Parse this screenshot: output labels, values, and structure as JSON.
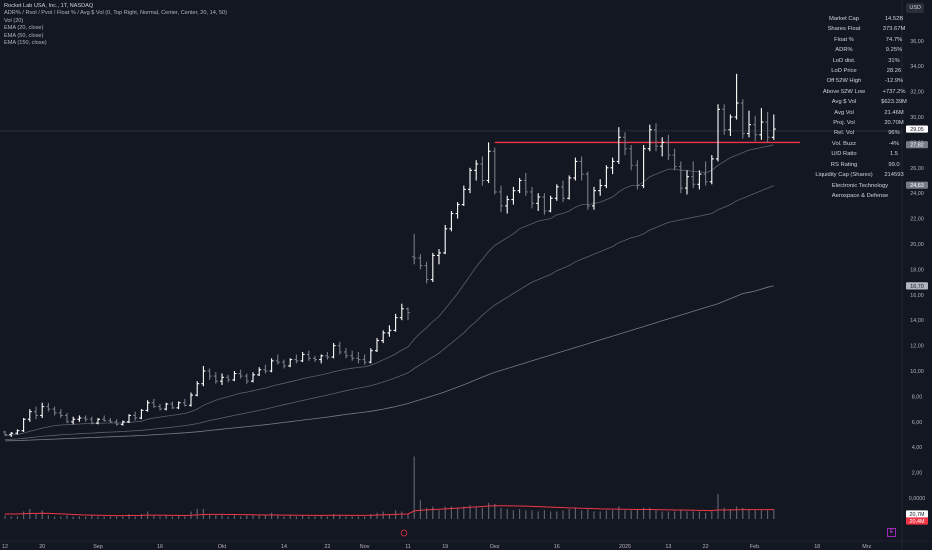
{
  "header": {
    "title": "Rocket Lab USA, Inc., 1T, NASDAQ",
    "indicators": [
      "ADR% / Rvol / Pvol / Float % / Avg $ Vol (0, Top Right, Normal, Center, Center, 20, 14, 50)",
      "Vol (20)",
      "EMA (20, close)",
      "EMA (50, close)",
      "EMA (150, close)"
    ],
    "currency": "USD"
  },
  "stats_table": [
    {
      "label": "Market Cap",
      "value": "14.52B"
    },
    {
      "label": "Shares Float",
      "value": "373.67M"
    },
    {
      "label": "Float %",
      "value": "74.7%"
    },
    {
      "label": "ADR%",
      "value": "9.25%"
    },
    {
      "label": "LoD dist.",
      "value": "31%"
    },
    {
      "label": "LoD Price",
      "value": "28.26"
    },
    {
      "label": "Off 52W High",
      "value": "-12.9%"
    },
    {
      "label": "Above 52W Low",
      "value": "+737.2%"
    },
    {
      "label": "Avg $ Vol",
      "value": "$623.39M"
    },
    {
      "label": "Avg Vol",
      "value": "21.46M"
    },
    {
      "label": "Proj. Vol",
      "value": "20.70M"
    },
    {
      "label": "Rel. Vol",
      "value": "96%"
    },
    {
      "label": "Vol. Buzz",
      "value": "-4%"
    },
    {
      "label": "U/D Ratio",
      "value": "1.5"
    },
    {
      "label": "RS Rating",
      "value": "99.0"
    },
    {
      "label": "Liquidity Cap (Shares)",
      "value": "214593"
    },
    {
      "label": "Electronic Technology",
      "value": ""
    },
    {
      "label": "Aerospace & Defense",
      "value": ""
    }
  ],
  "price_axis": {
    "ticks": [
      "36,00",
      "34,00",
      "32,00",
      "30,00",
      "28,00",
      "26,00",
      "24,00",
      "22,00",
      "20,00",
      "18,00",
      "16,00",
      "14,00",
      "12,00",
      "10,00",
      "8,00",
      "6,00",
      "4,00",
      "2,00",
      "0,0000"
    ],
    "labels": [
      {
        "text": "29,05",
        "value": 29.05,
        "bg": "#ffffff",
        "fg": "#131722"
      },
      {
        "text": "27,82",
        "value": 27.82,
        "bg": "#787b86",
        "fg": "#ffffff"
      },
      {
        "text": "24,63",
        "value": 24.63,
        "bg": "#787b86",
        "fg": "#ffffff"
      },
      {
        "text": "16,70",
        "value": 16.7,
        "bg": "#b2b5be",
        "fg": "#131722"
      },
      {
        "text": "20,7M",
        "value": -0.9,
        "bg": "#ffffff",
        "fg": "#131722"
      },
      {
        "text": "20,4M",
        "value": -2.3,
        "bg": "#f23645",
        "fg": "#ffffff"
      }
    ]
  },
  "time_axis": [
    {
      "label": "12",
      "at": 0
    },
    {
      "label": "20",
      "at": 6
    },
    {
      "label": "Sep",
      "at": 15
    },
    {
      "label": "16",
      "at": 25
    },
    {
      "label": "Okt",
      "at": 35
    },
    {
      "label": "14",
      "at": 45
    },
    {
      "label": "22",
      "at": 52
    },
    {
      "label": "Nov",
      "at": 58
    },
    {
      "label": "11",
      "at": 65
    },
    {
      "label": "19",
      "at": 71
    },
    {
      "label": "Dez",
      "at": 79
    },
    {
      "label": "16",
      "at": 89
    },
    {
      "label": "2025",
      "at": 100
    },
    {
      "label": "13",
      "at": 107
    },
    {
      "label": "22",
      "at": 113
    },
    {
      "label": "Feb.",
      "at": 121
    },
    {
      "label": "18",
      "at": 131
    },
    {
      "label": "Mrz",
      "at": 139
    }
  ],
  "chart_data": {
    "type": "ohlc",
    "title": "Rocket Lab USA, Inc., 1T, NASDAQ",
    "ylim": [
      0,
      37
    ],
    "horizontal_line": {
      "value": 28.0,
      "color": "#f23645"
    },
    "colors": {
      "up": "#ffffff",
      "down": "#787b86",
      "ema20": "#5d606b",
      "ema50": "#5d606b",
      "ema150": "#787b86",
      "vol_ma": "#f23645"
    },
    "ohlc": [
      [
        5.2,
        5.3,
        4.9,
        5.0
      ],
      [
        5.0,
        5.2,
        4.8,
        5.1
      ],
      [
        5.1,
        5.4,
        5.0,
        5.3
      ],
      [
        5.3,
        6.3,
        5.2,
        6.2
      ],
      [
        6.2,
        7.0,
        6.0,
        6.8
      ],
      [
        6.8,
        7.2,
        6.2,
        6.5
      ],
      [
        6.5,
        7.5,
        6.3,
        7.2
      ],
      [
        7.2,
        7.5,
        6.8,
        7.0
      ],
      [
        7.0,
        7.2,
        6.5,
        6.7
      ],
      [
        6.7,
        7.0,
        6.3,
        6.5
      ],
      [
        6.5,
        6.7,
        5.9,
        6.0
      ],
      [
        6.0,
        6.4,
        5.8,
        6.2
      ],
      [
        6.2,
        6.5,
        6.0,
        6.3
      ],
      [
        6.3,
        6.5,
        6.0,
        6.2
      ],
      [
        6.2,
        6.4,
        5.8,
        5.9
      ],
      [
        5.9,
        6.3,
        5.8,
        6.2
      ],
      [
        6.2,
        6.5,
        6.0,
        6.1
      ],
      [
        6.1,
        6.3,
        5.9,
        6.0
      ],
      [
        6.0,
        6.2,
        5.7,
        5.8
      ],
      [
        5.8,
        6.1,
        5.7,
        6.0
      ],
      [
        6.0,
        6.6,
        5.9,
        6.5
      ],
      [
        6.5,
        6.8,
        6.1,
        6.3
      ],
      [
        6.3,
        7.0,
        6.2,
        6.9
      ],
      [
        6.9,
        7.7,
        6.8,
        7.5
      ],
      [
        7.5,
        7.8,
        7.1,
        7.2
      ],
      [
        7.2,
        7.4,
        6.9,
        7.0
      ],
      [
        7.0,
        7.5,
        6.9,
        7.4
      ],
      [
        7.4,
        7.6,
        7.0,
        7.1
      ],
      [
        7.1,
        7.6,
        7.0,
        7.5
      ],
      [
        7.5,
        7.8,
        7.2,
        7.3
      ],
      [
        7.3,
        8.3,
        7.2,
        8.1
      ],
      [
        8.1,
        9.2,
        8.0,
        9.0
      ],
      [
        9.0,
        10.4,
        8.8,
        10.0
      ],
      [
        10.0,
        10.2,
        9.3,
        9.6
      ],
      [
        9.6,
        9.9,
        9.0,
        9.2
      ],
      [
        9.2,
        9.8,
        8.9,
        9.5
      ],
      [
        9.5,
        9.7,
        9.1,
        9.3
      ],
      [
        9.3,
        10.0,
        9.2,
        9.8
      ],
      [
        9.8,
        10.1,
        9.4,
        9.6
      ],
      [
        9.6,
        9.8,
        9.0,
        9.2
      ],
      [
        9.2,
        9.9,
        9.1,
        9.7
      ],
      [
        9.7,
        10.3,
        9.6,
        10.1
      ],
      [
        10.1,
        10.5,
        9.8,
        10.0
      ],
      [
        10.0,
        11.0,
        9.9,
        10.8
      ],
      [
        10.8,
        11.3,
        10.5,
        10.7
      ],
      [
        10.7,
        10.9,
        10.2,
        10.4
      ],
      [
        10.4,
        11.0,
        10.3,
        10.9
      ],
      [
        10.9,
        11.3,
        10.6,
        10.8
      ],
      [
        10.8,
        11.5,
        10.7,
        11.3
      ],
      [
        11.3,
        11.6,
        10.8,
        11.0
      ],
      [
        11.0,
        11.2,
        10.7,
        10.9
      ],
      [
        10.9,
        11.3,
        10.6,
        11.2
      ],
      [
        11.2,
        11.5,
        10.9,
        11.1
      ],
      [
        11.1,
        12.2,
        11.0,
        12.0
      ],
      [
        12.0,
        12.3,
        11.3,
        11.5
      ],
      [
        11.5,
        11.8,
        11.0,
        11.2
      ],
      [
        11.2,
        11.6,
        10.8,
        11.0
      ],
      [
        11.0,
        11.5,
        10.6,
        10.9
      ],
      [
        10.9,
        11.3,
        10.5,
        10.7
      ],
      [
        10.7,
        11.8,
        10.6,
        11.6
      ],
      [
        11.6,
        12.6,
        11.5,
        12.4
      ],
      [
        12.4,
        13.2,
        12.2,
        13.0
      ],
      [
        13.0,
        13.6,
        12.7,
        13.2
      ],
      [
        13.2,
        14.5,
        13.1,
        14.2
      ],
      [
        14.2,
        15.3,
        14.0,
        14.9
      ],
      [
        14.9,
        15.0,
        14.0,
        14.6
      ],
      [
        19.0,
        20.8,
        18.4,
        18.9
      ],
      [
        18.9,
        19.2,
        18.0,
        18.3
      ],
      [
        18.3,
        18.6,
        16.9,
        17.2
      ],
      [
        17.2,
        19.3,
        17.0,
        19.1
      ],
      [
        19.1,
        19.6,
        18.4,
        19.3
      ],
      [
        19.3,
        21.5,
        19.2,
        21.2
      ],
      [
        21.2,
        22.6,
        21.0,
        22.4
      ],
      [
        22.4,
        23.3,
        22.0,
        23.1
      ],
      [
        23.1,
        24.6,
        23.0,
        24.3
      ],
      [
        24.3,
        26.0,
        24.0,
        25.8
      ],
      [
        25.8,
        26.6,
        25.0,
        26.3
      ],
      [
        26.3,
        26.9,
        24.6,
        25.0
      ],
      [
        25.0,
        28.0,
        24.8,
        27.3
      ],
      [
        27.3,
        27.6,
        23.9,
        24.1
      ],
      [
        24.1,
        24.6,
        22.5,
        23.0
      ],
      [
        23.0,
        23.8,
        22.4,
        23.5
      ],
      [
        23.5,
        24.5,
        23.1,
        24.2
      ],
      [
        24.2,
        25.2,
        24.0,
        25.0
      ],
      [
        25.0,
        25.6,
        23.8,
        24.1
      ],
      [
        24.1,
        24.5,
        22.8,
        23.2
      ],
      [
        23.2,
        24.0,
        22.6,
        23.7
      ],
      [
        23.7,
        24.0,
        22.3,
        22.6
      ],
      [
        22.6,
        23.8,
        22.5,
        23.6
      ],
      [
        23.6,
        24.7,
        23.4,
        24.5
      ],
      [
        24.5,
        25.0,
        23.3,
        23.6
      ],
      [
        23.6,
        25.4,
        23.5,
        25.2
      ],
      [
        25.2,
        26.8,
        25.0,
        26.5
      ],
      [
        26.5,
        26.9,
        25.0,
        25.5
      ],
      [
        25.5,
        25.7,
        22.7,
        23.0
      ],
      [
        23.0,
        24.5,
        22.7,
        24.2
      ],
      [
        24.2,
        25.1,
        23.8,
        24.6
      ],
      [
        24.6,
        26.2,
        24.4,
        26.0
      ],
      [
        26.0,
        26.8,
        25.5,
        26.5
      ],
      [
        26.5,
        29.2,
        26.3,
        28.4
      ],
      [
        28.4,
        28.8,
        27.0,
        27.5
      ],
      [
        27.5,
        27.8,
        25.8,
        26.2
      ],
      [
        26.2,
        26.6,
        24.3,
        24.6
      ],
      [
        24.6,
        27.8,
        24.4,
        27.5
      ],
      [
        27.5,
        29.4,
        27.3,
        29.0
      ],
      [
        29.0,
        29.5,
        27.3,
        27.7
      ],
      [
        27.7,
        28.4,
        26.9,
        28.0
      ],
      [
        28.0,
        28.6,
        26.6,
        27.0
      ],
      [
        27.0,
        27.5,
        25.8,
        26.1
      ],
      [
        26.1,
        26.5,
        24.0,
        24.4
      ],
      [
        24.4,
        25.8,
        23.9,
        25.3
      ],
      [
        25.3,
        26.5,
        24.4,
        24.7
      ],
      [
        24.7,
        25.8,
        24.3,
        25.5
      ],
      [
        25.5,
        26.5,
        24.6,
        24.9
      ],
      [
        24.9,
        27.0,
        24.7,
        26.7
      ],
      [
        26.7,
        31.0,
        26.5,
        30.6
      ],
      [
        30.6,
        31.0,
        28.6,
        29.0
      ],
      [
        29.0,
        30.2,
        28.5,
        30.0
      ],
      [
        30.0,
        33.4,
        29.8,
        31.1
      ],
      [
        31.1,
        31.4,
        28.3,
        28.7
      ],
      [
        28.7,
        30.5,
        28.4,
        29.4
      ],
      [
        29.4,
        30.1,
        28.1,
        28.6
      ],
      [
        28.6,
        30.7,
        28.2,
        29.6
      ],
      [
        29.6,
        30.4,
        28.0,
        28.4
      ],
      [
        28.4,
        30.2,
        28.2,
        29.05
      ]
    ],
    "volume": [
      3,
      2,
      2,
      6,
      8,
      4,
      7,
      3,
      2,
      2,
      3,
      2,
      2,
      2,
      3,
      2,
      2,
      2,
      2,
      2,
      4,
      2,
      4,
      6,
      3,
      2,
      3,
      2,
      3,
      2,
      6,
      8,
      8,
      4,
      3,
      3,
      2,
      3,
      2,
      3,
      3,
      3,
      3,
      5,
      3,
      2,
      3,
      2,
      3,
      2,
      2,
      3,
      2,
      4,
      3,
      2,
      2,
      2,
      2,
      4,
      5,
      6,
      4,
      7,
      6,
      4,
      50,
      15,
      9,
      10,
      7,
      10,
      10,
      9,
      10,
      11,
      10,
      9,
      13,
      12,
      9,
      8,
      7,
      8,
      7,
      7,
      6,
      7,
      6,
      6,
      7,
      8,
      9,
      7,
      8,
      6,
      6,
      7,
      7,
      10,
      7,
      7,
      8,
      9,
      9,
      7,
      6,
      6,
      6,
      7,
      6,
      6,
      6,
      5,
      6,
      20,
      9,
      8,
      10,
      9,
      8,
      7,
      7,
      7,
      8
    ],
    "ema20": [
      4.9,
      4.95,
      5.0,
      5.1,
      5.25,
      5.38,
      5.5,
      5.6,
      5.7,
      5.75,
      5.78,
      5.8,
      5.83,
      5.86,
      5.87,
      5.88,
      5.9,
      5.91,
      5.9,
      5.91,
      5.96,
      5.99,
      6.05,
      6.2,
      6.3,
      6.37,
      6.45,
      6.5,
      6.58,
      6.65,
      6.8,
      7.0,
      7.3,
      7.5,
      7.7,
      7.85,
      7.98,
      8.12,
      8.25,
      8.34,
      8.44,
      8.55,
      8.65,
      8.8,
      8.93,
      9.03,
      9.16,
      9.27,
      9.4,
      9.5,
      9.6,
      9.69,
      9.8,
      9.94,
      10.05,
      10.14,
      10.22,
      10.28,
      10.33,
      10.46,
      10.65,
      10.88,
      11.1,
      11.35,
      11.65,
      11.9,
      12.5,
      13.0,
      13.4,
      13.9,
      14.3,
      14.9,
      15.5,
      16.1,
      16.8,
      17.5,
      18.2,
      18.8,
      19.4,
      19.9,
      20.2,
      20.5,
      20.8,
      21.2,
      21.4,
      21.6,
      21.8,
      21.9,
      22.0,
      22.3,
      22.4,
      22.6,
      22.9,
      23.1,
      23.1,
      23.2,
      23.3,
      23.5,
      23.7,
      24.1,
      24.4,
      24.6,
      24.6,
      24.9,
      25.3,
      25.5,
      25.7,
      25.9,
      25.9,
      25.8,
      25.8,
      25.7,
      25.7,
      25.6,
      25.8,
      26.2,
      26.5,
      26.8,
      27.0,
      27.2,
      27.4,
      27.5,
      27.6,
      27.7,
      27.8
    ],
    "ema50": [
      4.6,
      4.62,
      4.65,
      4.7,
      4.75,
      4.8,
      4.85,
      4.9,
      4.94,
      4.98,
      5.01,
      5.03,
      5.06,
      5.09,
      5.11,
      5.14,
      5.17,
      5.19,
      5.21,
      5.24,
      5.27,
      5.3,
      5.33,
      5.38,
      5.43,
      5.48,
      5.53,
      5.58,
      5.64,
      5.7,
      5.77,
      5.86,
      5.98,
      6.1,
      6.2,
      6.3,
      6.4,
      6.5,
      6.6,
      6.7,
      6.8,
      6.9,
      7.0,
      7.12,
      7.24,
      7.35,
      7.46,
      7.57,
      7.68,
      7.79,
      7.9,
      8.0,
      8.1,
      8.22,
      8.34,
      8.45,
      8.55,
      8.65,
      8.74,
      8.85,
      8.98,
      9.13,
      9.3,
      9.47,
      9.67,
      9.85,
      10.2,
      10.5,
      10.8,
      11.1,
      11.4,
      11.8,
      12.2,
      12.6,
      13.0,
      13.5,
      13.9,
      14.4,
      14.8,
      15.2,
      15.5,
      15.8,
      16.1,
      16.4,
      16.7,
      17.0,
      17.2,
      17.4,
      17.6,
      17.9,
      18.1,
      18.3,
      18.6,
      18.8,
      19.0,
      19.2,
      19.4,
      19.6,
      19.8,
      20.1,
      20.3,
      20.5,
      20.6,
      20.8,
      21.1,
      21.3,
      21.5,
      21.7,
      21.8,
      21.9,
      22.0,
      22.1,
      22.2,
      22.3,
      22.4,
      22.7,
      22.9,
      23.1,
      23.4,
      23.6,
      23.8,
      24.0,
      24.2,
      24.4,
      24.6
    ],
    "ema150": [
      4.5,
      4.51,
      4.52,
      4.54,
      4.56,
      4.58,
      4.6,
      4.62,
      4.64,
      4.66,
      4.68,
      4.7,
      4.72,
      4.74,
      4.76,
      4.78,
      4.8,
      4.82,
      4.84,
      4.86,
      4.88,
      4.9,
      4.92,
      4.95,
      4.98,
      5.01,
      5.04,
      5.07,
      5.1,
      5.13,
      5.17,
      5.21,
      5.26,
      5.32,
      5.37,
      5.42,
      5.47,
      5.52,
      5.57,
      5.62,
      5.67,
      5.72,
      5.77,
      5.83,
      5.89,
      5.95,
      6.01,
      6.07,
      6.13,
      6.19,
      6.25,
      6.31,
      6.37,
      6.44,
      6.51,
      6.58,
      6.64,
      6.7,
      6.76,
      6.83,
      6.91,
      7.0,
      7.1,
      7.2,
      7.32,
      7.44,
      7.6,
      7.75,
      7.9,
      8.05,
      8.2,
      8.37,
      8.55,
      8.73,
      8.92,
      9.12,
      9.32,
      9.52,
      9.72,
      9.9,
      10.05,
      10.2,
      10.35,
      10.5,
      10.65,
      10.8,
      10.95,
      11.1,
      11.25,
      11.4,
      11.55,
      11.7,
      11.85,
      12.0,
      12.15,
      12.3,
      12.45,
      12.6,
      12.75,
      12.9,
      13.05,
      13.2,
      13.35,
      13.5,
      13.65,
      13.8,
      13.95,
      14.1,
      14.25,
      14.4,
      14.55,
      14.7,
      14.85,
      15.0,
      15.15,
      15.3,
      15.5,
      15.7,
      15.9,
      16.1,
      16.2,
      16.3,
      16.45,
      16.6,
      16.7
    ],
    "vol_ma": [
      4,
      4,
      4,
      4.2,
      4.4,
      4.5,
      4.6,
      4.5,
      4.3,
      4.1,
      3.9,
      3.6,
      3.4,
      3.2,
      3.1,
      3.0,
      2.9,
      2.8,
      2.7,
      2.7,
      2.8,
      2.8,
      2.9,
      3.1,
      3.1,
      3.0,
      3.0,
      2.9,
      2.9,
      2.8,
      3.0,
      3.3,
      3.6,
      3.7,
      3.7,
      3.7,
      3.6,
      3.6,
      3.5,
      3.5,
      3.4,
      3.3,
      3.2,
      3.2,
      3.2,
      3.1,
      3.1,
      3.0,
      3.0,
      2.9,
      2.9,
      2.9,
      2.9,
      3.0,
      3.0,
      2.9,
      2.9,
      2.9,
      2.9,
      3.0,
      3.2,
      3.4,
      3.5,
      3.7,
      3.9,
      4.0,
      6.5,
      7.0,
      7.3,
      7.6,
      7.8,
      8.1,
      8.4,
      8.7,
      9.0,
      9.4,
      9.7,
      10.0,
      10.4,
      10.6,
      10.6,
      10.6,
      10.5,
      10.4,
      10.3,
      10.1,
      9.9,
      9.7,
      9.5,
      9.3,
      9.1,
      8.9,
      8.8,
      8.6,
      8.5,
      8.3,
      8.1,
      8.0,
      7.9,
      7.9,
      7.8,
      7.7,
      7.6,
      7.6,
      7.6,
      7.5,
      7.4,
      7.3,
      7.2,
      7.2,
      7.1,
      7.0,
      6.9,
      6.8,
      6.7,
      7.2,
      7.2,
      7.3,
      7.4,
      7.5,
      7.5,
      7.5,
      7.5,
      7.5,
      7.5
    ]
  }
}
